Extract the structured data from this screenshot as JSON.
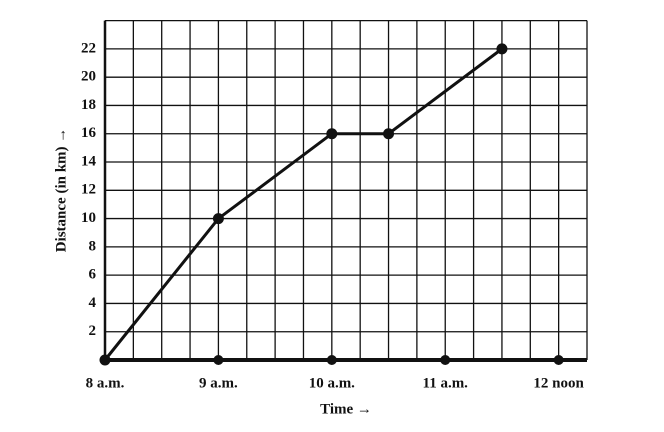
{
  "chart_data": {
    "type": "line",
    "x_label": "Time →",
    "y_label": "Distance (in km) →",
    "x": [
      8,
      9,
      10,
      10.5,
      11.5
    ],
    "series": [
      {
        "color": "#111111",
        "values": [
          0,
          10,
          16,
          16,
          22
        ]
      }
    ],
    "xlim": [
      8,
      12.25
    ],
    "xticks": [
      {
        "value": 8,
        "label": "8 a.m."
      },
      {
        "value": 9,
        "label": "9 a.m."
      },
      {
        "value": 10,
        "label": "10 a.m."
      },
      {
        "value": 11,
        "label": "11 a.m."
      },
      {
        "value": 12,
        "label": "12 noon"
      }
    ],
    "ylim": [
      0,
      24
    ],
    "yticks": [
      2,
      4,
      6,
      8,
      10,
      12,
      14,
      16,
      18,
      20,
      22
    ],
    "grid": true
  }
}
